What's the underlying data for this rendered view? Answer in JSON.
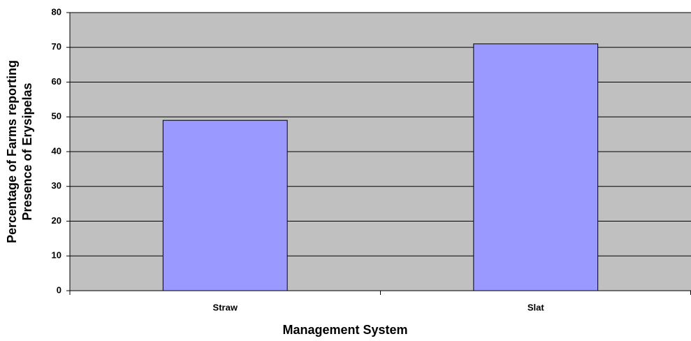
{
  "chart_data": {
    "type": "bar",
    "categories": [
      "Straw",
      "Slat"
    ],
    "values": [
      49,
      71
    ],
    "color": "#9999ff",
    "plot_background": "#c0c0c0",
    "xlabel": "Management System",
    "ylabel": [
      "Percentage of Farms reporting",
      "Presence of Erysipelas"
    ],
    "ylim": [
      0,
      80
    ],
    "yticks": [
      0,
      10,
      20,
      30,
      40,
      50,
      60,
      70,
      80
    ],
    "grid": true
  }
}
